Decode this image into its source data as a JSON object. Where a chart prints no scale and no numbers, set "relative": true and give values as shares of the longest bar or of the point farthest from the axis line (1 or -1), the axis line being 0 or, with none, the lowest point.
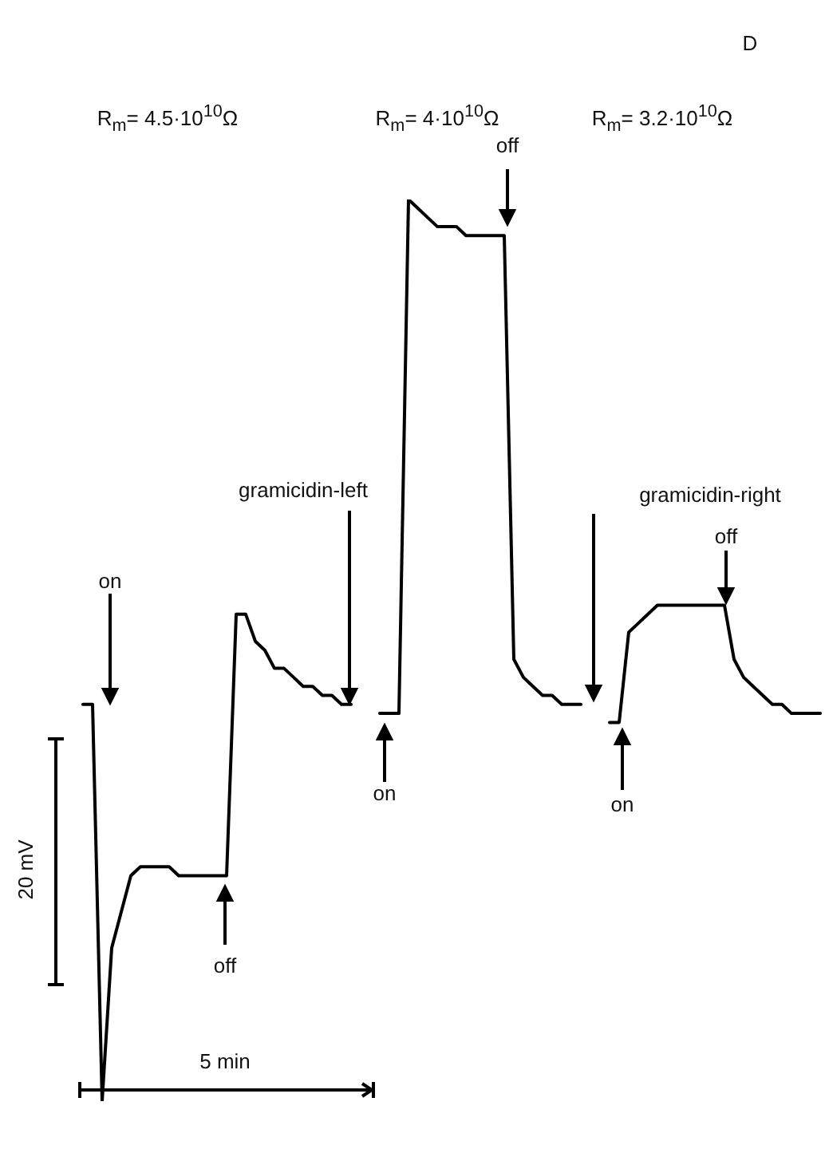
{
  "chart_data": {
    "type": "line",
    "relative": true,
    "tick_labels": false,
    "legend": false,
    "marker": "none",
    "line_style": "solid",
    "categories": [
      null,
      null,
      null,
      null,
      null,
      null,
      null,
      null,
      null,
      null,
      null,
      null,
      null,
      null,
      null,
      null,
      null,
      null,
      null,
      null,
      null,
      null,
      null,
      null,
      null,
      null,
      null,
      null,
      null,
      null,
      null,
      null,
      null,
      null,
      null,
      null,
      null,
      null,
      null,
      null,
      null,
      null,
      null,
      null,
      null,
      null,
      null,
      null,
      null,
      null,
      null,
      null,
      null,
      null,
      null,
      null,
      null,
      null,
      null,
      null,
      null,
      null,
      null,
      null,
      null,
      null,
      null,
      null,
      null,
      null,
      null,
      null,
      null,
      null,
      null,
      null,
      null,
      null
    ],
    "series": [
      {
        "color": "#000000",
        "values": [
          0.44,
          0.44,
          0,
          0.17,
          0.21,
          0.25,
          0.26,
          0.26,
          0.26,
          0.26,
          0.25,
          0.25,
          0.25,
          0.25,
          0.25,
          0.25,
          0.54,
          0.54,
          0.51,
          0.5,
          0.48,
          0.48,
          0.47,
          0.46,
          0.46,
          0.45,
          0.45,
          0.44,
          0.44,
          null,
          null,
          null,
          null,
          null,
          null,
          null,
          null,
          null,
          null,
          null,
          null,
          null,
          null,
          null,
          null,
          null,
          null,
          null,
          null,
          null,
          null,
          null,
          null,
          null,
          null,
          null,
          null,
          null,
          null,
          null,
          null,
          null,
          null,
          null,
          null,
          null,
          null,
          null,
          null,
          null,
          null,
          null,
          null,
          null,
          null,
          null,
          null,
          null
        ]
      },
      {
        "color": "#000000",
        "values": [
          null,
          null,
          null,
          null,
          null,
          null,
          null,
          null,
          null,
          null,
          null,
          null,
          null,
          null,
          null,
          null,
          null,
          null,
          null,
          null,
          null,
          null,
          null,
          null,
          null,
          null,
          null,
          null,
          null,
          null,
          null,
          0.43,
          0.43,
          0.43,
          1,
          0.99,
          0.98,
          0.97,
          0.97,
          0.97,
          0.96,
          0.96,
          0.96,
          0.96,
          0.96,
          0.49,
          0.47,
          0.46,
          0.45,
          0.45,
          0.44,
          0.44,
          0.44,
          null,
          null,
          null,
          null,
          null,
          null,
          null,
          null,
          null,
          null,
          null,
          null,
          null,
          null,
          null,
          null,
          null,
          null,
          null,
          null,
          null,
          null,
          null,
          null,
          null
        ]
      },
      {
        "color": "#000000",
        "values": [
          null,
          null,
          null,
          null,
          null,
          null,
          null,
          null,
          null,
          null,
          null,
          null,
          null,
          null,
          null,
          null,
          null,
          null,
          null,
          null,
          null,
          null,
          null,
          null,
          null,
          null,
          null,
          null,
          null,
          null,
          null,
          null,
          null,
          null,
          null,
          null,
          null,
          null,
          null,
          null,
          null,
          null,
          null,
          null,
          null,
          null,
          null,
          null,
          null,
          null,
          null,
          null,
          null,
          null,
          null,
          0.42,
          0.42,
          0.52,
          0.53,
          0.54,
          0.55,
          0.55,
          0.55,
          0.55,
          0.55,
          0.55,
          0.55,
          0.55,
          0.49,
          0.47,
          0.46,
          0.45,
          0.44,
          0.44,
          0.43,
          0.43,
          0.43,
          0.43
        ]
      }
    ],
    "annotations": [
      "D",
      "R$_{m}$= 4.5·10$^{10}$Ω",
      "R$_{m}$= 4·10$^{10}$Ω",
      "R$_{m}$= 3.2·10$^{10}$Ω",
      "on",
      "off",
      "gramicidin-left",
      "on",
      "off",
      "gramicidin-right",
      "on",
      "off",
      "20 mV",
      "5 min"
    ]
  }
}
